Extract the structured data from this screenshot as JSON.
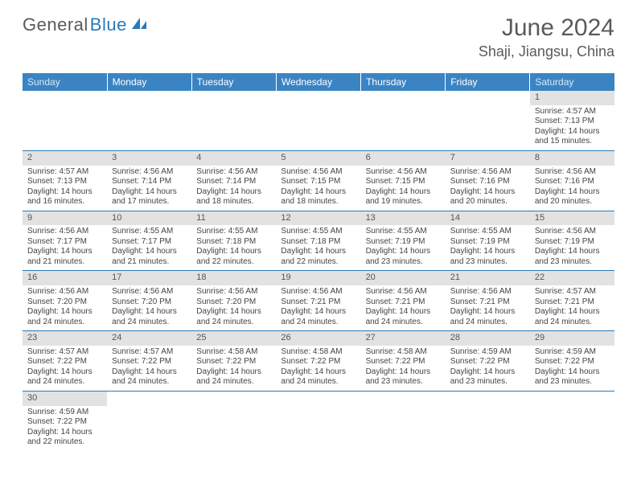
{
  "logo": {
    "text1": "General",
    "text2": "Blue"
  },
  "title": "June 2024",
  "location": "Shaji, Jiangsu, China",
  "colors": {
    "header_bg": "#3b84c4",
    "header_text": "#ffffff",
    "daynum_bg": "#e2e2e2",
    "row_divider": "#2a7ab8",
    "logo_gray": "#5a5a5a",
    "logo_blue": "#2a7ab8"
  },
  "day_headers": [
    "Sunday",
    "Monday",
    "Tuesday",
    "Wednesday",
    "Thursday",
    "Friday",
    "Saturday"
  ],
  "weeks": [
    [
      null,
      null,
      null,
      null,
      null,
      null,
      {
        "n": "1",
        "sr": "Sunrise: 4:57 AM",
        "ss": "Sunset: 7:13 PM",
        "dl": "Daylight: 14 hours and 15 minutes."
      }
    ],
    [
      {
        "n": "2",
        "sr": "Sunrise: 4:57 AM",
        "ss": "Sunset: 7:13 PM",
        "dl": "Daylight: 14 hours and 16 minutes."
      },
      {
        "n": "3",
        "sr": "Sunrise: 4:56 AM",
        "ss": "Sunset: 7:14 PM",
        "dl": "Daylight: 14 hours and 17 minutes."
      },
      {
        "n": "4",
        "sr": "Sunrise: 4:56 AM",
        "ss": "Sunset: 7:14 PM",
        "dl": "Daylight: 14 hours and 18 minutes."
      },
      {
        "n": "5",
        "sr": "Sunrise: 4:56 AM",
        "ss": "Sunset: 7:15 PM",
        "dl": "Daylight: 14 hours and 18 minutes."
      },
      {
        "n": "6",
        "sr": "Sunrise: 4:56 AM",
        "ss": "Sunset: 7:15 PM",
        "dl": "Daylight: 14 hours and 19 minutes."
      },
      {
        "n": "7",
        "sr": "Sunrise: 4:56 AM",
        "ss": "Sunset: 7:16 PM",
        "dl": "Daylight: 14 hours and 20 minutes."
      },
      {
        "n": "8",
        "sr": "Sunrise: 4:56 AM",
        "ss": "Sunset: 7:16 PM",
        "dl": "Daylight: 14 hours and 20 minutes."
      }
    ],
    [
      {
        "n": "9",
        "sr": "Sunrise: 4:56 AM",
        "ss": "Sunset: 7:17 PM",
        "dl": "Daylight: 14 hours and 21 minutes."
      },
      {
        "n": "10",
        "sr": "Sunrise: 4:55 AM",
        "ss": "Sunset: 7:17 PM",
        "dl": "Daylight: 14 hours and 21 minutes."
      },
      {
        "n": "11",
        "sr": "Sunrise: 4:55 AM",
        "ss": "Sunset: 7:18 PM",
        "dl": "Daylight: 14 hours and 22 minutes."
      },
      {
        "n": "12",
        "sr": "Sunrise: 4:55 AM",
        "ss": "Sunset: 7:18 PM",
        "dl": "Daylight: 14 hours and 22 minutes."
      },
      {
        "n": "13",
        "sr": "Sunrise: 4:55 AM",
        "ss": "Sunset: 7:19 PM",
        "dl": "Daylight: 14 hours and 23 minutes."
      },
      {
        "n": "14",
        "sr": "Sunrise: 4:55 AM",
        "ss": "Sunset: 7:19 PM",
        "dl": "Daylight: 14 hours and 23 minutes."
      },
      {
        "n": "15",
        "sr": "Sunrise: 4:56 AM",
        "ss": "Sunset: 7:19 PM",
        "dl": "Daylight: 14 hours and 23 minutes."
      }
    ],
    [
      {
        "n": "16",
        "sr": "Sunrise: 4:56 AM",
        "ss": "Sunset: 7:20 PM",
        "dl": "Daylight: 14 hours and 24 minutes."
      },
      {
        "n": "17",
        "sr": "Sunrise: 4:56 AM",
        "ss": "Sunset: 7:20 PM",
        "dl": "Daylight: 14 hours and 24 minutes."
      },
      {
        "n": "18",
        "sr": "Sunrise: 4:56 AM",
        "ss": "Sunset: 7:20 PM",
        "dl": "Daylight: 14 hours and 24 minutes."
      },
      {
        "n": "19",
        "sr": "Sunrise: 4:56 AM",
        "ss": "Sunset: 7:21 PM",
        "dl": "Daylight: 14 hours and 24 minutes."
      },
      {
        "n": "20",
        "sr": "Sunrise: 4:56 AM",
        "ss": "Sunset: 7:21 PM",
        "dl": "Daylight: 14 hours and 24 minutes."
      },
      {
        "n": "21",
        "sr": "Sunrise: 4:56 AM",
        "ss": "Sunset: 7:21 PM",
        "dl": "Daylight: 14 hours and 24 minutes."
      },
      {
        "n": "22",
        "sr": "Sunrise: 4:57 AM",
        "ss": "Sunset: 7:21 PM",
        "dl": "Daylight: 14 hours and 24 minutes."
      }
    ],
    [
      {
        "n": "23",
        "sr": "Sunrise: 4:57 AM",
        "ss": "Sunset: 7:22 PM",
        "dl": "Daylight: 14 hours and 24 minutes."
      },
      {
        "n": "24",
        "sr": "Sunrise: 4:57 AM",
        "ss": "Sunset: 7:22 PM",
        "dl": "Daylight: 14 hours and 24 minutes."
      },
      {
        "n": "25",
        "sr": "Sunrise: 4:58 AM",
        "ss": "Sunset: 7:22 PM",
        "dl": "Daylight: 14 hours and 24 minutes."
      },
      {
        "n": "26",
        "sr": "Sunrise: 4:58 AM",
        "ss": "Sunset: 7:22 PM",
        "dl": "Daylight: 14 hours and 24 minutes."
      },
      {
        "n": "27",
        "sr": "Sunrise: 4:58 AM",
        "ss": "Sunset: 7:22 PM",
        "dl": "Daylight: 14 hours and 23 minutes."
      },
      {
        "n": "28",
        "sr": "Sunrise: 4:59 AM",
        "ss": "Sunset: 7:22 PM",
        "dl": "Daylight: 14 hours and 23 minutes."
      },
      {
        "n": "29",
        "sr": "Sunrise: 4:59 AM",
        "ss": "Sunset: 7:22 PM",
        "dl": "Daylight: 14 hours and 23 minutes."
      }
    ],
    [
      {
        "n": "30",
        "sr": "Sunrise: 4:59 AM",
        "ss": "Sunset: 7:22 PM",
        "dl": "Daylight: 14 hours and 22 minutes."
      },
      null,
      null,
      null,
      null,
      null,
      null
    ]
  ]
}
